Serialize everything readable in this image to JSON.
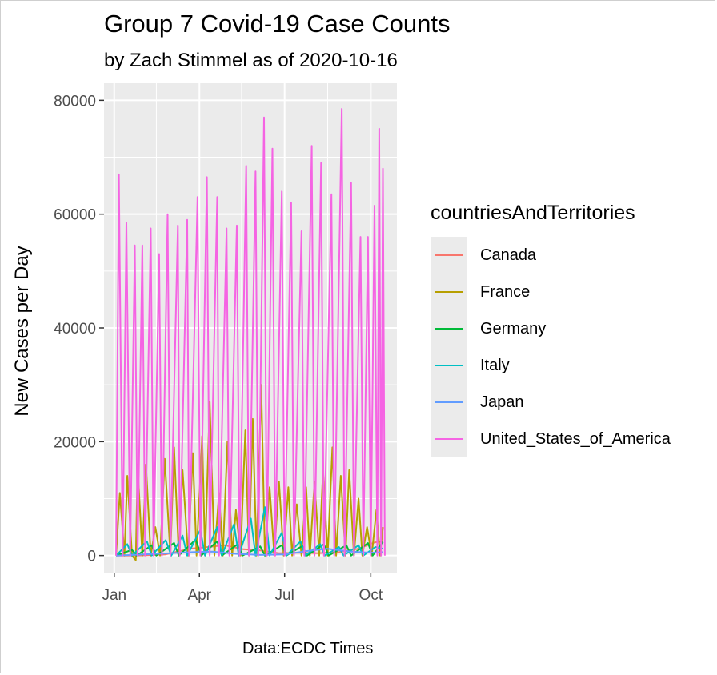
{
  "chart_data": {
    "type": "line",
    "title": "Group 7 Covid-19 Case Counts",
    "subtitle": "by Zach Stimmel as of 2020-10-16",
    "caption": "Data:ECDC Times",
    "xlabel": "",
    "ylabel": "New Cases per Day",
    "x_ticks": [
      "Jan",
      "Apr",
      "Jul",
      "Oct"
    ],
    "y_ticks": [
      0,
      20000,
      40000,
      60000,
      80000
    ],
    "ylim": [
      -3000,
      83000
    ],
    "grid": true,
    "legend": {
      "title": "countriesAndTerritories",
      "position": "right"
    },
    "series": [
      {
        "name": "Canada",
        "color": "#F8766D",
        "points": [
          [
            "2020-01-03",
            0
          ],
          [
            "2020-01-30",
            20
          ],
          [
            "2020-02-25",
            200
          ],
          [
            "2020-03-22",
            1200
          ],
          [
            "2020-04-10",
            1500
          ],
          [
            "2020-04-28",
            1800
          ],
          [
            "2020-05-18",
            1100
          ],
          [
            "2020-06-05",
            900
          ],
          [
            "2020-06-25",
            400
          ],
          [
            "2020-07-15",
            500
          ],
          [
            "2020-08-05",
            400
          ],
          [
            "2020-08-28",
            600
          ],
          [
            "2020-09-18",
            1200
          ],
          [
            "2020-10-05",
            2300
          ],
          [
            "2020-10-14",
            2500
          ]
        ]
      },
      {
        "name": "France",
        "color": "#B79F00",
        "points": [
          [
            "2020-01-03",
            0
          ],
          [
            "2020-01-07",
            11000
          ],
          [
            "2020-01-12",
            0
          ],
          [
            "2020-01-15",
            14000
          ],
          [
            "2020-01-20",
            0
          ],
          [
            "2020-01-24",
            -800
          ],
          [
            "2020-01-26",
            16000
          ],
          [
            "2020-01-31",
            0
          ],
          [
            "2020-02-04",
            16000
          ],
          [
            "2020-02-09",
            0
          ],
          [
            "2020-02-14",
            5000
          ],
          [
            "2020-02-19",
            0
          ],
          [
            "2020-02-24",
            17000
          ],
          [
            "2020-03-01",
            0
          ],
          [
            "2020-03-05",
            19000
          ],
          [
            "2020-03-10",
            0
          ],
          [
            "2020-03-14",
            15000
          ],
          [
            "2020-03-20",
            0
          ],
          [
            "2020-03-25",
            18000
          ],
          [
            "2020-03-29",
            0
          ],
          [
            "2020-04-04",
            21000
          ],
          [
            "2020-04-07",
            0
          ],
          [
            "2020-04-12",
            27000
          ],
          [
            "2020-04-17",
            0
          ],
          [
            "2020-04-22",
            11000
          ],
          [
            "2020-04-26",
            0
          ],
          [
            "2020-05-01",
            20000
          ],
          [
            "2020-05-06",
            0
          ],
          [
            "2020-05-10",
            8000
          ],
          [
            "2020-05-15",
            0
          ],
          [
            "2020-05-20",
            22000
          ],
          [
            "2020-05-24",
            0
          ],
          [
            "2020-05-28",
            24000
          ],
          [
            "2020-06-01",
            0
          ],
          [
            "2020-06-06",
            30000
          ],
          [
            "2020-06-10",
            0
          ],
          [
            "2020-06-15",
            12000
          ],
          [
            "2020-06-20",
            0
          ],
          [
            "2020-06-25",
            13000
          ],
          [
            "2020-06-30",
            0
          ],
          [
            "2020-07-05",
            12000
          ],
          [
            "2020-07-09",
            0
          ],
          [
            "2020-07-14",
            9000
          ],
          [
            "2020-07-19",
            0
          ],
          [
            "2020-07-24",
            12000
          ],
          [
            "2020-07-28",
            0
          ],
          [
            "2020-08-02",
            13000
          ],
          [
            "2020-08-07",
            0
          ],
          [
            "2020-08-11",
            15000
          ],
          [
            "2020-08-16",
            0
          ],
          [
            "2020-08-21",
            19000
          ],
          [
            "2020-08-25",
            0
          ],
          [
            "2020-08-30",
            14000
          ],
          [
            "2020-09-04",
            0
          ],
          [
            "2020-09-08",
            15000
          ],
          [
            "2020-09-13",
            0
          ],
          [
            "2020-09-18",
            10000
          ],
          [
            "2020-09-22",
            0
          ],
          [
            "2020-09-27",
            5000
          ],
          [
            "2020-10-02",
            0
          ],
          [
            "2020-10-07",
            8000
          ],
          [
            "2020-10-11",
            0
          ],
          [
            "2020-10-14",
            5000
          ]
        ]
      },
      {
        "name": "Germany",
        "color": "#00BA38",
        "points": [
          [
            "2020-01-03",
            0
          ],
          [
            "2020-01-20",
            1000
          ],
          [
            "2020-01-25",
            0
          ],
          [
            "2020-02-10",
            1800
          ],
          [
            "2020-02-15",
            0
          ],
          [
            "2020-03-05",
            2200
          ],
          [
            "2020-03-10",
            0
          ],
          [
            "2020-03-28",
            2800
          ],
          [
            "2020-04-03",
            0
          ],
          [
            "2020-04-20",
            2500
          ],
          [
            "2020-04-25",
            0
          ],
          [
            "2020-05-12",
            2000
          ],
          [
            "2020-05-17",
            0
          ],
          [
            "2020-06-05",
            1600
          ],
          [
            "2020-06-10",
            0
          ],
          [
            "2020-06-28",
            1800
          ],
          [
            "2020-07-03",
            0
          ],
          [
            "2020-07-20",
            1700
          ],
          [
            "2020-07-25",
            0
          ],
          [
            "2020-08-12",
            2000
          ],
          [
            "2020-08-17",
            0
          ],
          [
            "2020-09-05",
            1800
          ],
          [
            "2020-09-10",
            0
          ],
          [
            "2020-09-28",
            2200
          ],
          [
            "2020-10-03",
            0
          ],
          [
            "2020-10-14",
            2400
          ]
        ]
      },
      {
        "name": "Italy",
        "color": "#00BFC4",
        "points": [
          [
            "2020-01-03",
            0
          ],
          [
            "2020-01-15",
            2000
          ],
          [
            "2020-01-20",
            0
          ],
          [
            "2020-02-05",
            2500
          ],
          [
            "2020-02-10",
            0
          ],
          [
            "2020-02-25",
            2700
          ],
          [
            "2020-03-02",
            0
          ],
          [
            "2020-03-14",
            3500
          ],
          [
            "2020-03-19",
            0
          ],
          [
            "2020-04-02",
            4500
          ],
          [
            "2020-04-07",
            0
          ],
          [
            "2020-04-20",
            5000
          ],
          [
            "2020-04-25",
            0
          ],
          [
            "2020-05-08",
            5500
          ],
          [
            "2020-05-13",
            0
          ],
          [
            "2020-05-26",
            6500
          ],
          [
            "2020-05-31",
            0
          ],
          [
            "2020-06-10",
            8500
          ],
          [
            "2020-06-15",
            0
          ],
          [
            "2020-06-28",
            4000
          ],
          [
            "2020-07-03",
            0
          ],
          [
            "2020-07-18",
            2500
          ],
          [
            "2020-07-23",
            0
          ],
          [
            "2020-08-08",
            2000
          ],
          [
            "2020-08-13",
            0
          ],
          [
            "2020-08-28",
            1500
          ],
          [
            "2020-09-02",
            0
          ],
          [
            "2020-09-18",
            1800
          ],
          [
            "2020-09-23",
            0
          ],
          [
            "2020-10-06",
            1500
          ],
          [
            "2020-10-14",
            1200
          ]
        ]
      },
      {
        "name": "Japan",
        "color": "#619CFF",
        "points": [
          [
            "2020-01-03",
            0
          ],
          [
            "2020-02-01",
            200
          ],
          [
            "2020-03-01",
            400
          ],
          [
            "2020-03-25",
            600
          ],
          [
            "2020-04-15",
            700
          ],
          [
            "2020-05-10",
            300
          ],
          [
            "2020-06-05",
            100
          ],
          [
            "2020-07-01",
            200
          ],
          [
            "2020-07-25",
            800
          ],
          [
            "2020-08-15",
            1200
          ],
          [
            "2020-09-10",
            700
          ],
          [
            "2020-10-01",
            500
          ],
          [
            "2020-10-14",
            600
          ]
        ]
      },
      {
        "name": "United_States_of_America",
        "color": "#F564E3",
        "points": [
          [
            "2020-01-03",
            0
          ],
          [
            "2020-01-06",
            67000
          ],
          [
            "2020-01-10",
            0
          ],
          [
            "2020-01-14",
            58500
          ],
          [
            "2020-01-18",
            0
          ],
          [
            "2020-01-23",
            54500
          ],
          [
            "2020-01-26",
            0
          ],
          [
            "2020-01-31",
            54500
          ],
          [
            "2020-02-03",
            0
          ],
          [
            "2020-02-09",
            57500
          ],
          [
            "2020-02-12",
            0
          ],
          [
            "2020-02-18",
            53000
          ],
          [
            "2020-02-21",
            0
          ],
          [
            "2020-02-27",
            60000
          ],
          [
            "2020-03-01",
            0
          ],
          [
            "2020-03-09",
            58000
          ],
          [
            "2020-03-11",
            0
          ],
          [
            "2020-03-19",
            59000
          ],
          [
            "2020-03-21",
            0
          ],
          [
            "2020-03-30",
            63000
          ],
          [
            "2020-04-02",
            0
          ],
          [
            "2020-04-09",
            66500
          ],
          [
            "2020-04-12",
            0
          ],
          [
            "2020-04-20",
            63000
          ],
          [
            "2020-04-22",
            0
          ],
          [
            "2020-04-30",
            57500
          ],
          [
            "2020-05-03",
            0
          ],
          [
            "2020-05-11",
            58000
          ],
          [
            "2020-05-14",
            0
          ],
          [
            "2020-05-21",
            68500
          ],
          [
            "2020-05-24",
            0
          ],
          [
            "2020-05-31",
            67500
          ],
          [
            "2020-06-03",
            0
          ],
          [
            "2020-06-09",
            77000
          ],
          [
            "2020-06-12",
            0
          ],
          [
            "2020-06-18",
            71500
          ],
          [
            "2020-06-21",
            0
          ],
          [
            "2020-06-28",
            64000
          ],
          [
            "2020-07-01",
            0
          ],
          [
            "2020-07-08",
            62000
          ],
          [
            "2020-07-11",
            0
          ],
          [
            "2020-07-19",
            57000
          ],
          [
            "2020-07-22",
            0
          ],
          [
            "2020-07-30",
            72000
          ],
          [
            "2020-08-02",
            0
          ],
          [
            "2020-08-09",
            69000
          ],
          [
            "2020-08-12",
            0
          ],
          [
            "2020-08-20",
            63500
          ],
          [
            "2020-08-23",
            0
          ],
          [
            "2020-08-31",
            78500
          ],
          [
            "2020-09-03",
            0
          ],
          [
            "2020-09-10",
            65500
          ],
          [
            "2020-09-13",
            0
          ],
          [
            "2020-09-20",
            56000
          ],
          [
            "2020-09-23",
            0
          ],
          [
            "2020-09-28",
            56000
          ],
          [
            "2020-10-01",
            0
          ],
          [
            "2020-10-05",
            61500
          ],
          [
            "2020-10-08",
            0
          ],
          [
            "2020-10-10",
            75000
          ],
          [
            "2020-10-12",
            0
          ],
          [
            "2020-10-14",
            68000
          ],
          [
            "2020-10-16",
            0
          ]
        ]
      }
    ]
  }
}
